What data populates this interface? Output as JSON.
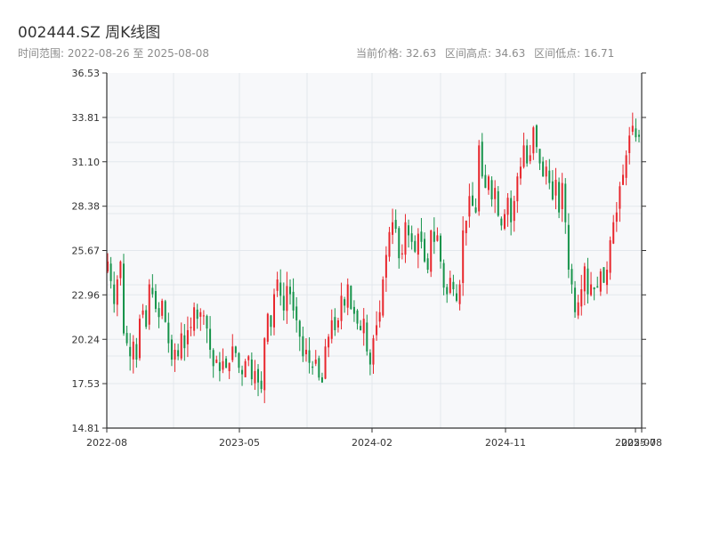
{
  "header": {
    "title": "002444.SZ 周K线图",
    "range_text": "时间范围: 2022-08-26 至 2025-08-08",
    "current_price": "当前价格: 32.63",
    "high_text": "区间高点: 34.63",
    "low_text": "区间低点: 16.71"
  },
  "colors": {
    "up": "#e8262c",
    "down": "#16934a",
    "axis": "#333333",
    "grid": "#e3e7ec",
    "plot_bg": "#f7f8fa"
  },
  "chart_data": {
    "type": "candlestick",
    "title": "002444.SZ 周K线图",
    "xlabel": "",
    "ylabel": "",
    "ylim": [
      14.81,
      36.53
    ],
    "yticks": [
      "14.81",
      "17.53",
      "20.24",
      "22.96",
      "25.67",
      "28.38",
      "31.10",
      "33.81",
      "36.53"
    ],
    "xticks": [
      "2022-08",
      "2023-05",
      "2024-02",
      "2024-11",
      "2025-07",
      "2025-08"
    ],
    "grid": true,
    "legend": "none",
    "week_closes": [
      25.0,
      23.8,
      22.4,
      23.9,
      25.0,
      20.6,
      20.0,
      19.2,
      20.1,
      19.0,
      21.5,
      22.0,
      21.0,
      23.6,
      23.0,
      22.1,
      21.6,
      22.6,
      21.3,
      20.0,
      19.0,
      19.6,
      19.2,
      20.6,
      19.7,
      20.8,
      21.0,
      22.2,
      21.5,
      21.9,
      21.7,
      20.9,
      19.6,
      18.6,
      19.0,
      18.3,
      18.9,
      18.5,
      18.8,
      19.8,
      19.4,
      18.5,
      18.1,
      18.9,
      19.2,
      17.8,
      18.3,
      17.6,
      17.2,
      20.3,
      21.8,
      21.0,
      23.0,
      23.9,
      22.9,
      22.0,
      23.5,
      23.0,
      22.0,
      21.4,
      20.4,
      19.2,
      19.6,
      18.8,
      18.5,
      19.0,
      17.9,
      17.6,
      19.8,
      20.4,
      21.4,
      20.8,
      21.4,
      22.9,
      22.3,
      23.6,
      22.1,
      21.8,
      21.2,
      20.8,
      21.5,
      19.5,
      18.7,
      20.3,
      21.1,
      21.9,
      23.9,
      25.4,
      26.8,
      27.4,
      27.0,
      25.2,
      25.5,
      27.4,
      26.6,
      26.2,
      25.6,
      26.7,
      26.2,
      25.0,
      24.5,
      26.9,
      26.2,
      26.6,
      25.0,
      23.4,
      23.0,
      24.0,
      23.3,
      22.6,
      23.6,
      26.9,
      27.5,
      29.0,
      28.4,
      28.0,
      32.1,
      30.2,
      29.5,
      30.2,
      28.8,
      29.5,
      27.8,
      27.2,
      27.9,
      28.9,
      27.4,
      28.7,
      30.2,
      30.8,
      32.1,
      31.0,
      31.5,
      33.2,
      32.0,
      31.0,
      30.2,
      30.8,
      29.8,
      28.8,
      30.0,
      28.0,
      29.8,
      27.4,
      24.5,
      23.6,
      21.9,
      22.5,
      23.3,
      24.7,
      23.0,
      23.6,
      23.3,
      23.4,
      24.4,
      23.7,
      24.5,
      26.3,
      27.4,
      28.0,
      29.6,
      30.3,
      31.5,
      32.7,
      33.3,
      32.6,
      32.63
    ]
  }
}
